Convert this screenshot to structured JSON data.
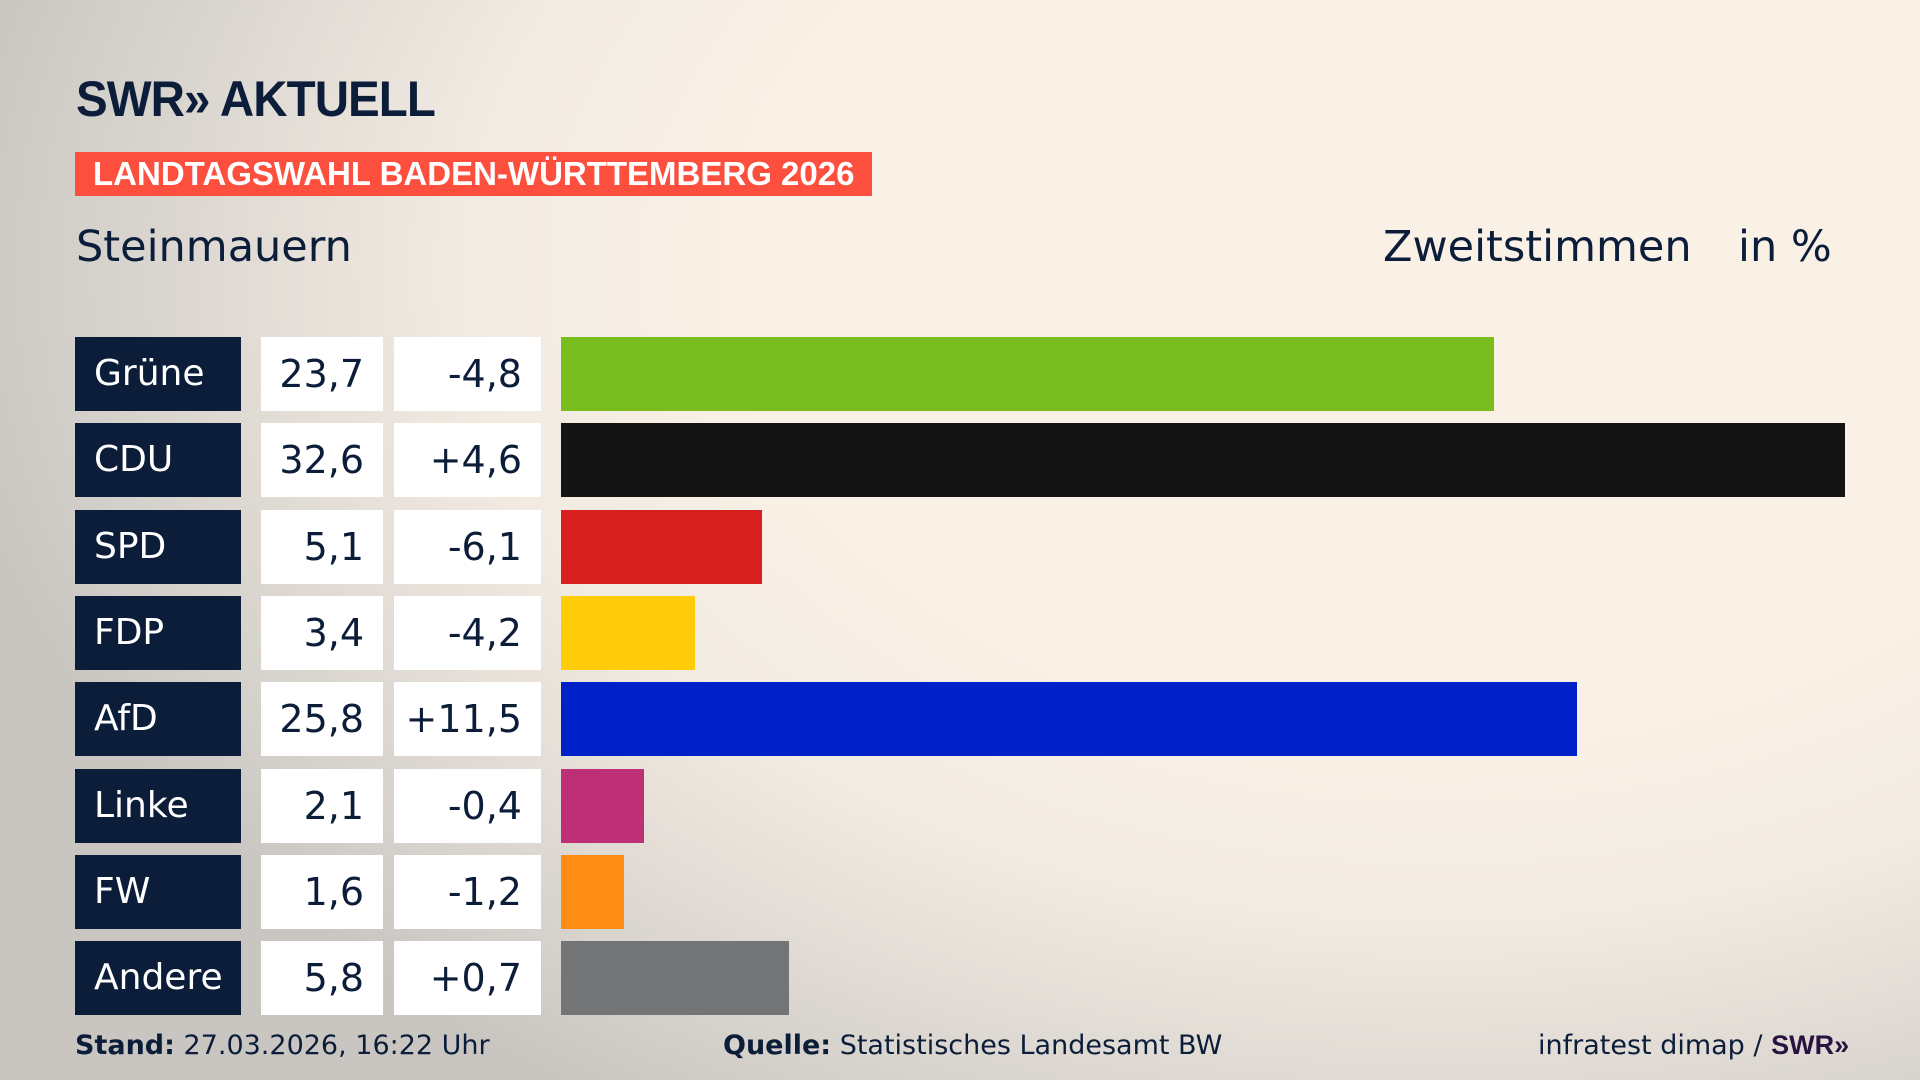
{
  "header": {
    "logo_text": "SWR» AKTUELL",
    "banner": "LANDTAGSWAHL BADEN-WÜRTTEMBERG 2026",
    "region": "Steinmauern",
    "metric": "Zweitstimmen",
    "unit": "in %"
  },
  "chart_data": {
    "type": "bar",
    "orientation": "horizontal",
    "categories": [
      "Grüne",
      "CDU",
      "SPD",
      "FDP",
      "AfD",
      "Linke",
      "FW",
      "Andere"
    ],
    "values": [
      23.7,
      32.6,
      5.1,
      3.4,
      25.8,
      2.1,
      1.6,
      5.8
    ],
    "value_labels": [
      "23,7",
      "32,6",
      "5,1",
      "3,4",
      "25,8",
      "2,1",
      "1,6",
      "5,8"
    ],
    "diff_labels": [
      "-4,8",
      "+4,6",
      "-6,1",
      "-4,2",
      "+11,5",
      "-0,4",
      "-1,2",
      "+0,7"
    ],
    "diffs": [
      -4.8,
      4.6,
      -6.1,
      -4.2,
      11.5,
      -0.4,
      -1.2,
      0.7
    ],
    "colors": [
      "#78bc1e",
      "#141414",
      "#d71f1d",
      "#ffcc0a",
      "#0021c8",
      "#bd3075",
      "#ff8c14",
      "#737476"
    ],
    "xlim": [
      0,
      32.6
    ],
    "grid": false
  },
  "footer": {
    "stand_label": "Stand:",
    "stand_value": "27.03.2026, 16:22 Uhr",
    "source_label": "Quelle:",
    "source_value": "Statistisches Landesamt BW",
    "credit": "infratest dimap /",
    "credit_logo": "SWR»"
  }
}
